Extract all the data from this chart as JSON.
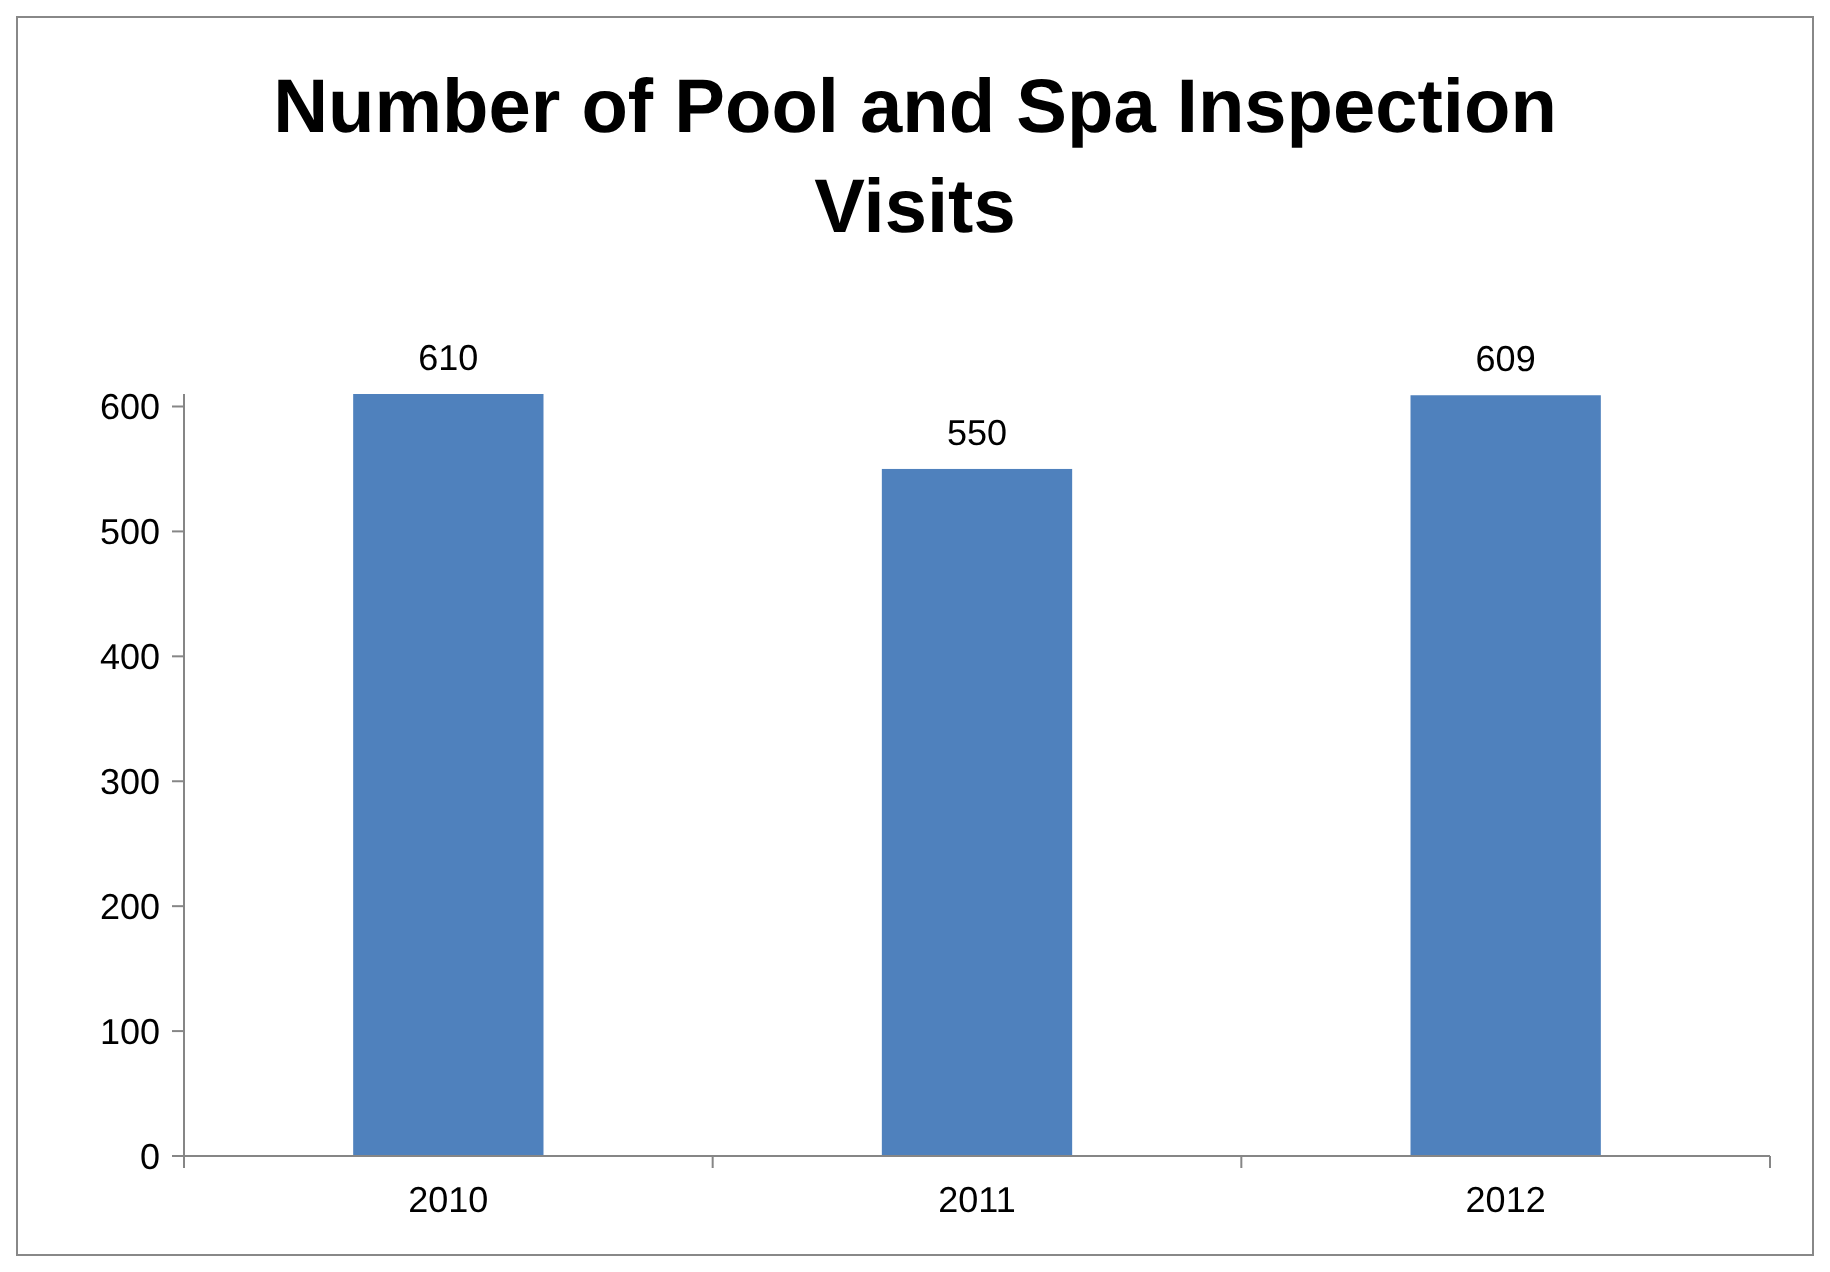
{
  "chart_data": {
    "type": "bar",
    "title": "Number of Pool and Spa Inspection Visits",
    "categories": [
      "2010",
      "2011",
      "2012"
    ],
    "values": [
      610,
      550,
      609
    ],
    "color": "#4f81bd",
    "ylim": [
      0,
      610
    ],
    "yticks": [
      0,
      100,
      200,
      300,
      400,
      500,
      600
    ],
    "data_labels": true,
    "grid": false
  }
}
